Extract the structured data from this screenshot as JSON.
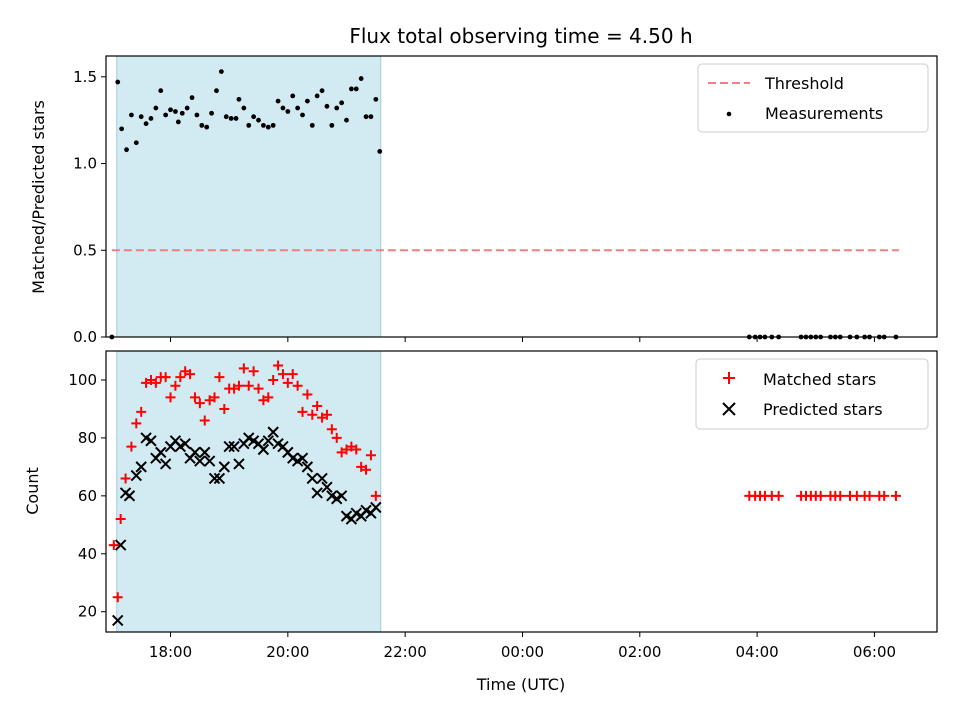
{
  "chart_data": [
    {
      "type": "scatter",
      "title": "Flux total observing time = 4.50 h",
      "xlabel": "",
      "ylabel": "Matched/Predicted stars",
      "xlim": [
        "2023-01-01T16:54",
        "2023-01-02T07:04"
      ],
      "ylim": [
        0,
        1.62
      ],
      "yticks": [
        0.0,
        0.5,
        1.0,
        1.5
      ],
      "ytick_labels": [
        "0.0",
        "0.5",
        "1.0",
        "1.5"
      ],
      "shaded_span": [
        "2023-01-01T17:05",
        "2023-01-01T21:35"
      ],
      "grid": false,
      "legend": "top-right",
      "threshold": {
        "name": "Threshold",
        "value": 0.5,
        "x_range": [
          "2023-01-01T17:00",
          "2023-01-02T06:25"
        ],
        "color": "#f08080"
      },
      "series": [
        {
          "name": "Measurements",
          "color": "#000000",
          "points": [
            [
              "2023-01-01T17:00",
              0.0
            ],
            [
              "2023-01-01T17:06",
              1.47
            ],
            [
              "2023-01-01T17:10",
              1.2
            ],
            [
              "2023-01-01T17:15",
              1.08
            ],
            [
              "2023-01-01T17:20",
              1.28
            ],
            [
              "2023-01-01T17:25",
              1.12
            ],
            [
              "2023-01-01T17:30",
              1.27
            ],
            [
              "2023-01-01T17:35",
              1.23
            ],
            [
              "2023-01-01T17:40",
              1.26
            ],
            [
              "2023-01-01T17:45",
              1.32
            ],
            [
              "2023-01-01T17:50",
              1.42
            ],
            [
              "2023-01-01T17:55",
              1.28
            ],
            [
              "2023-01-01T18:00",
              1.31
            ],
            [
              "2023-01-01T18:05",
              1.3
            ],
            [
              "2023-01-01T18:08",
              1.24
            ],
            [
              "2023-01-01T18:12",
              1.29
            ],
            [
              "2023-01-01T18:17",
              1.32
            ],
            [
              "2023-01-01T18:22",
              1.38
            ],
            [
              "2023-01-01T18:27",
              1.28
            ],
            [
              "2023-01-01T18:32",
              1.22
            ],
            [
              "2023-01-01T18:37",
              1.21
            ],
            [
              "2023-01-01T18:42",
              1.29
            ],
            [
              "2023-01-01T18:47",
              1.42
            ],
            [
              "2023-01-01T18:52",
              1.53
            ],
            [
              "2023-01-01T18:57",
              1.27
            ],
            [
              "2023-01-01T19:02",
              1.26
            ],
            [
              "2023-01-01T19:07",
              1.26
            ],
            [
              "2023-01-01T19:10",
              1.37
            ],
            [
              "2023-01-01T19:15",
              1.32
            ],
            [
              "2023-01-01T19:20",
              1.22
            ],
            [
              "2023-01-01T19:25",
              1.27
            ],
            [
              "2023-01-01T19:30",
              1.25
            ],
            [
              "2023-01-01T19:35",
              1.22
            ],
            [
              "2023-01-01T19:40",
              1.21
            ],
            [
              "2023-01-01T19:45",
              1.22
            ],
            [
              "2023-01-01T19:50",
              1.36
            ],
            [
              "2023-01-01T19:55",
              1.32
            ],
            [
              "2023-01-01T20:00",
              1.3
            ],
            [
              "2023-01-01T20:05",
              1.39
            ],
            [
              "2023-01-01T20:10",
              1.32
            ],
            [
              "2023-01-01T20:15",
              1.28
            ],
            [
              "2023-01-01T20:20",
              1.36
            ],
            [
              "2023-01-01T20:25",
              1.22
            ],
            [
              "2023-01-01T20:30",
              1.39
            ],
            [
              "2023-01-01T20:35",
              1.42
            ],
            [
              "2023-01-01T20:40",
              1.33
            ],
            [
              "2023-01-01T20:45",
              1.22
            ],
            [
              "2023-01-01T20:50",
              1.32
            ],
            [
              "2023-01-01T20:55",
              1.35
            ],
            [
              "2023-01-01T21:00",
              1.25
            ],
            [
              "2023-01-01T21:05",
              1.43
            ],
            [
              "2023-01-01T21:10",
              1.43
            ],
            [
              "2023-01-01T21:15",
              1.49
            ],
            [
              "2023-01-01T21:20",
              1.27
            ],
            [
              "2023-01-01T21:25",
              1.27
            ],
            [
              "2023-01-01T21:30",
              1.37
            ],
            [
              "2023-01-01T21:34",
              1.07
            ],
            [
              "2023-01-02T03:52",
              0.0
            ],
            [
              "2023-01-02T03:58",
              0.0
            ],
            [
              "2023-01-02T04:03",
              0.0
            ],
            [
              "2023-01-02T04:08",
              0.0
            ],
            [
              "2023-01-02T04:15",
              0.0
            ],
            [
              "2023-01-02T04:22",
              0.0
            ],
            [
              "2023-01-02T04:45",
              0.0
            ],
            [
              "2023-01-02T04:50",
              0.0
            ],
            [
              "2023-01-02T04:55",
              0.0
            ],
            [
              "2023-01-02T05:00",
              0.0
            ],
            [
              "2023-01-02T05:05",
              0.0
            ],
            [
              "2023-01-02T05:15",
              0.0
            ],
            [
              "2023-01-02T05:20",
              0.0
            ],
            [
              "2023-01-02T05:25",
              0.0
            ],
            [
              "2023-01-02T05:35",
              0.0
            ],
            [
              "2023-01-02T05:42",
              0.0
            ],
            [
              "2023-01-02T05:50",
              0.0
            ],
            [
              "2023-01-02T05:55",
              0.0
            ],
            [
              "2023-01-02T06:05",
              0.0
            ],
            [
              "2023-01-02T06:10",
              0.0
            ],
            [
              "2023-01-02T06:22",
              0.0
            ]
          ]
        }
      ]
    },
    {
      "type": "scatter",
      "title": "",
      "xlabel": "Time (UTC)",
      "ylabel": "Count",
      "xlim": [
        "2023-01-01T16:54",
        "2023-01-02T07:04"
      ],
      "ylim": [
        13,
        110
      ],
      "yticks": [
        20,
        40,
        60,
        80,
        100
      ],
      "ytick_labels": [
        "20",
        "40",
        "60",
        "80",
        "100"
      ],
      "xticks": [
        "2023-01-01T18:00",
        "2023-01-01T20:00",
        "2023-01-01T22:00",
        "2023-01-02T00:00",
        "2023-01-02T02:00",
        "2023-01-02T04:00",
        "2023-01-02T06:00"
      ],
      "xtick_labels": [
        "18:00",
        "20:00",
        "22:00",
        "00:00",
        "02:00",
        "04:00",
        "06:00"
      ],
      "shaded_span": [
        "2023-01-01T17:05",
        "2023-01-01T21:35"
      ],
      "grid": false,
      "legend": "top-right",
      "series": [
        {
          "name": "Matched stars",
          "marker": "+",
          "color": "#ff0000",
          "points": [
            [
              "2023-01-01T17:02",
              43
            ],
            [
              "2023-01-01T17:06",
              25
            ],
            [
              "2023-01-01T17:09",
              52
            ],
            [
              "2023-01-01T17:14",
              66
            ],
            [
              "2023-01-01T17:20",
              77
            ],
            [
              "2023-01-01T17:25",
              85
            ],
            [
              "2023-01-01T17:30",
              89
            ],
            [
              "2023-01-01T17:35",
              99
            ],
            [
              "2023-01-01T17:40",
              100
            ],
            [
              "2023-01-01T17:45",
              99
            ],
            [
              "2023-01-01T17:50",
              101
            ],
            [
              "2023-01-01T17:55",
              101
            ],
            [
              "2023-01-01T18:00",
              94
            ],
            [
              "2023-01-01T18:05",
              98
            ],
            [
              "2023-01-01T18:10",
              101
            ],
            [
              "2023-01-01T18:15",
              103
            ],
            [
              "2023-01-01T18:20",
              102
            ],
            [
              "2023-01-01T18:25",
              94
            ],
            [
              "2023-01-01T18:30",
              92
            ],
            [
              "2023-01-01T18:35",
              86
            ],
            [
              "2023-01-01T18:40",
              93
            ],
            [
              "2023-01-01T18:45",
              94
            ],
            [
              "2023-01-01T18:50",
              101
            ],
            [
              "2023-01-01T18:55",
              90
            ],
            [
              "2023-01-01T19:00",
              97
            ],
            [
              "2023-01-01T19:05",
              97
            ],
            [
              "2023-01-01T19:10",
              98
            ],
            [
              "2023-01-01T19:15",
              104
            ],
            [
              "2023-01-01T19:20",
              98
            ],
            [
              "2023-01-01T19:25",
              103
            ],
            [
              "2023-01-01T19:30",
              97
            ],
            [
              "2023-01-01T19:35",
              93
            ],
            [
              "2023-01-01T19:40",
              94
            ],
            [
              "2023-01-01T19:45",
              100
            ],
            [
              "2023-01-01T19:50",
              105
            ],
            [
              "2023-01-01T19:55",
              102
            ],
            [
              "2023-01-01T20:00",
              99
            ],
            [
              "2023-01-01T20:05",
              102
            ],
            [
              "2023-01-01T20:10",
              98
            ],
            [
              "2023-01-01T20:15",
              89
            ],
            [
              "2023-01-01T20:20",
              95
            ],
            [
              "2023-01-01T20:25",
              88
            ],
            [
              "2023-01-01T20:30",
              91
            ],
            [
              "2023-01-01T20:35",
              87
            ],
            [
              "2023-01-01T20:40",
              88
            ],
            [
              "2023-01-01T20:45",
              83
            ],
            [
              "2023-01-01T20:50",
              80
            ],
            [
              "2023-01-01T20:55",
              75
            ],
            [
              "2023-01-01T21:00",
              76
            ],
            [
              "2023-01-01T21:05",
              77
            ],
            [
              "2023-01-01T21:10",
              76
            ],
            [
              "2023-01-01T21:15",
              70
            ],
            [
              "2023-01-01T21:20",
              69
            ],
            [
              "2023-01-01T21:25",
              74
            ],
            [
              "2023-01-01T21:30",
              60
            ],
            [
              "2023-01-02T03:52",
              60
            ],
            [
              "2023-01-02T03:58",
              60
            ],
            [
              "2023-01-02T04:03",
              60
            ],
            [
              "2023-01-02T04:08",
              60
            ],
            [
              "2023-01-02T04:15",
              60
            ],
            [
              "2023-01-02T04:22",
              60
            ],
            [
              "2023-01-02T04:45",
              60
            ],
            [
              "2023-01-02T04:50",
              60
            ],
            [
              "2023-01-02T04:55",
              60
            ],
            [
              "2023-01-02T05:00",
              60
            ],
            [
              "2023-01-02T05:05",
              60
            ],
            [
              "2023-01-02T05:15",
              60
            ],
            [
              "2023-01-02T05:20",
              60
            ],
            [
              "2023-01-02T05:25",
              60
            ],
            [
              "2023-01-02T05:35",
              60
            ],
            [
              "2023-01-02T05:42",
              60
            ],
            [
              "2023-01-02T05:50",
              60
            ],
            [
              "2023-01-02T05:55",
              60
            ],
            [
              "2023-01-02T06:05",
              60
            ],
            [
              "2023-01-02T06:10",
              60
            ],
            [
              "2023-01-02T06:22",
              60
            ]
          ]
        },
        {
          "name": "Predicted stars",
          "marker": "x",
          "color": "#000000",
          "points": [
            [
              "2023-01-01T17:06",
              17
            ],
            [
              "2023-01-01T17:09",
              43
            ],
            [
              "2023-01-01T17:14",
              61
            ],
            [
              "2023-01-01T17:18",
              60
            ],
            [
              "2023-01-01T17:25",
              67
            ],
            [
              "2023-01-01T17:30",
              70
            ],
            [
              "2023-01-01T17:35",
              80
            ],
            [
              "2023-01-01T17:40",
              79
            ],
            [
              "2023-01-01T17:45",
              73
            ],
            [
              "2023-01-01T17:50",
              75
            ],
            [
              "2023-01-01T17:55",
              71
            ],
            [
              "2023-01-01T18:00",
              77
            ],
            [
              "2023-01-01T18:05",
              79
            ],
            [
              "2023-01-01T18:10",
              77
            ],
            [
              "2023-01-01T18:15",
              78
            ],
            [
              "2023-01-01T18:20",
              73
            ],
            [
              "2023-01-01T18:25",
              75
            ],
            [
              "2023-01-01T18:30",
              72
            ],
            [
              "2023-01-01T18:35",
              75
            ],
            [
              "2023-01-01T18:40",
              72
            ],
            [
              "2023-01-01T18:45",
              66
            ],
            [
              "2023-01-01T18:50",
              66
            ],
            [
              "2023-01-01T18:55",
              70
            ],
            [
              "2023-01-01T19:00",
              77
            ],
            [
              "2023-01-01T19:05",
              77
            ],
            [
              "2023-01-01T19:10",
              71
            ],
            [
              "2023-01-01T19:15",
              78
            ],
            [
              "2023-01-01T19:20",
              80
            ],
            [
              "2023-01-01T19:25",
              79
            ],
            [
              "2023-01-01T19:30",
              78
            ],
            [
              "2023-01-01T19:35",
              76
            ],
            [
              "2023-01-01T19:40",
              79
            ],
            [
              "2023-01-01T19:45",
              82
            ],
            [
              "2023-01-01T19:50",
              78
            ],
            [
              "2023-01-01T19:55",
              77
            ],
            [
              "2023-01-01T20:00",
              75
            ],
            [
              "2023-01-01T20:05",
              73
            ],
            [
              "2023-01-01T20:10",
              72
            ],
            [
              "2023-01-01T20:15",
              73
            ],
            [
              "2023-01-01T20:20",
              70
            ],
            [
              "2023-01-01T20:25",
              66
            ],
            [
              "2023-01-01T20:30",
              61
            ],
            [
              "2023-01-01T20:35",
              66
            ],
            [
              "2023-01-01T20:40",
              63
            ],
            [
              "2023-01-01T20:45",
              60
            ],
            [
              "2023-01-01T20:50",
              59
            ],
            [
              "2023-01-01T20:55",
              60
            ],
            [
              "2023-01-01T21:00",
              53
            ],
            [
              "2023-01-01T21:05",
              52
            ],
            [
              "2023-01-01T21:10",
              54
            ],
            [
              "2023-01-01T21:15",
              53
            ],
            [
              "2023-01-01T21:20",
              55
            ],
            [
              "2023-01-01T21:25",
              54
            ],
            [
              "2023-01-01T21:30",
              56
            ]
          ]
        }
      ]
    }
  ]
}
